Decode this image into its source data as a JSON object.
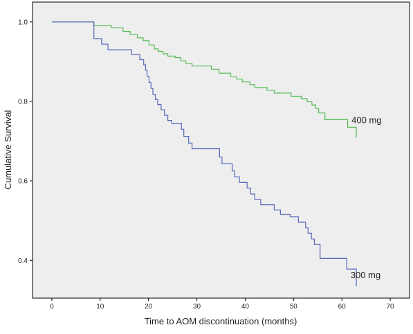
{
  "chart_data": {
    "type": "line",
    "title": "",
    "xlabel": "Time to AOM discontinuation (months)",
    "ylabel": "Cumulative Survival",
    "xlim": [
      -4,
      74
    ],
    "ylim": [
      0.305,
      1.05
    ],
    "xticks": [
      0,
      10,
      20,
      30,
      40,
      50,
      60,
      70
    ],
    "yticks": [
      0.4,
      0.6,
      0.8,
      1.0
    ],
    "ytick_labels": [
      "0.4",
      "0.6",
      "0.8",
      "1.0"
    ],
    "plot_background": "#eeeeee",
    "grid": false,
    "series": [
      {
        "name": "400 mg",
        "color": "#55bb55",
        "label_at": [
          62,
          0.745
        ],
        "points": [
          [
            0,
            1.0
          ],
          [
            8.7,
            1.0
          ],
          [
            8.7,
            0.991
          ],
          [
            12.3,
            0.991
          ],
          [
            12.3,
            0.985
          ],
          [
            14.7,
            0.985
          ],
          [
            14.7,
            0.976
          ],
          [
            16.2,
            0.976
          ],
          [
            16.2,
            0.968
          ],
          [
            17.7,
            0.968
          ],
          [
            17.7,
            0.96
          ],
          [
            18.9,
            0.96
          ],
          [
            18.9,
            0.953
          ],
          [
            20.1,
            0.953
          ],
          [
            20.1,
            0.942
          ],
          [
            21.2,
            0.942
          ],
          [
            21.2,
            0.932
          ],
          [
            22.0,
            0.932
          ],
          [
            22.0,
            0.926
          ],
          [
            23.0,
            0.926
          ],
          [
            23.0,
            0.92
          ],
          [
            24.0,
            0.92
          ],
          [
            24.0,
            0.914
          ],
          [
            25.5,
            0.914
          ],
          [
            25.5,
            0.91
          ],
          [
            26.7,
            0.91
          ],
          [
            26.7,
            0.902
          ],
          [
            27.7,
            0.902
          ],
          [
            27.7,
            0.896
          ],
          [
            29.0,
            0.896
          ],
          [
            29.0,
            0.889
          ],
          [
            33.0,
            0.889
          ],
          [
            33.0,
            0.881
          ],
          [
            34.6,
            0.881
          ],
          [
            34.6,
            0.871
          ],
          [
            37.0,
            0.871
          ],
          [
            37.0,
            0.862
          ],
          [
            38.2,
            0.862
          ],
          [
            38.2,
            0.856
          ],
          [
            39.4,
            0.856
          ],
          [
            39.4,
            0.849
          ],
          [
            41.0,
            0.849
          ],
          [
            41.0,
            0.842
          ],
          [
            42.0,
            0.842
          ],
          [
            42.0,
            0.835
          ],
          [
            44.5,
            0.835
          ],
          [
            44.5,
            0.828
          ],
          [
            46.0,
            0.828
          ],
          [
            46.0,
            0.821
          ],
          [
            49.5,
            0.821
          ],
          [
            49.5,
            0.813
          ],
          [
            51.6,
            0.813
          ],
          [
            51.6,
            0.807
          ],
          [
            52.8,
            0.807
          ],
          [
            52.8,
            0.799
          ],
          [
            53.8,
            0.799
          ],
          [
            53.8,
            0.791
          ],
          [
            54.6,
            0.791
          ],
          [
            54.6,
            0.782
          ],
          [
            55.2,
            0.782
          ],
          [
            55.2,
            0.771
          ],
          [
            56.5,
            0.771
          ],
          [
            56.5,
            0.754
          ],
          [
            61.2,
            0.754
          ],
          [
            61.2,
            0.735
          ],
          [
            63.0,
            0.735
          ],
          [
            63.0,
            0.708
          ]
        ]
      },
      {
        "name": "300 mg",
        "color": "#5566bb",
        "label_at": [
          61.8,
          0.355
        ],
        "points": [
          [
            0,
            1.0
          ],
          [
            8.7,
            1.0
          ],
          [
            8.7,
            0.958
          ],
          [
            10.3,
            0.958
          ],
          [
            10.3,
            0.944
          ],
          [
            11.6,
            0.944
          ],
          [
            11.6,
            0.93
          ],
          [
            16.5,
            0.93
          ],
          [
            16.5,
            0.918
          ],
          [
            18.2,
            0.918
          ],
          [
            18.2,
            0.905
          ],
          [
            19.0,
            0.905
          ],
          [
            19.0,
            0.892
          ],
          [
            19.4,
            0.892
          ],
          [
            19.4,
            0.878
          ],
          [
            19.7,
            0.878
          ],
          [
            19.7,
            0.863
          ],
          [
            20.1,
            0.863
          ],
          [
            20.1,
            0.848
          ],
          [
            20.5,
            0.848
          ],
          [
            20.5,
            0.833
          ],
          [
            20.9,
            0.833
          ],
          [
            20.9,
            0.818
          ],
          [
            21.4,
            0.818
          ],
          [
            21.4,
            0.805
          ],
          [
            21.9,
            0.805
          ],
          [
            21.9,
            0.792
          ],
          [
            22.6,
            0.792
          ],
          [
            22.6,
            0.779
          ],
          [
            23.3,
            0.779
          ],
          [
            23.3,
            0.765
          ],
          [
            24.0,
            0.765
          ],
          [
            24.0,
            0.752
          ],
          [
            24.8,
            0.752
          ],
          [
            24.8,
            0.745
          ],
          [
            26.8,
            0.745
          ],
          [
            26.8,
            0.73
          ],
          [
            27.3,
            0.73
          ],
          [
            27.3,
            0.712
          ],
          [
            28.3,
            0.712
          ],
          [
            28.3,
            0.695
          ],
          [
            29.0,
            0.695
          ],
          [
            29.0,
            0.681
          ],
          [
            34.7,
            0.681
          ],
          [
            34.7,
            0.66
          ],
          [
            35.2,
            0.66
          ],
          [
            35.2,
            0.643
          ],
          [
            37.3,
            0.643
          ],
          [
            37.3,
            0.625
          ],
          [
            37.8,
            0.625
          ],
          [
            37.8,
            0.61
          ],
          [
            38.8,
            0.61
          ],
          [
            38.8,
            0.596
          ],
          [
            40.4,
            0.596
          ],
          [
            40.4,
            0.582
          ],
          [
            41.1,
            0.582
          ],
          [
            41.1,
            0.567
          ],
          [
            42.0,
            0.567
          ],
          [
            42.0,
            0.553
          ],
          [
            43.2,
            0.553
          ],
          [
            43.2,
            0.54
          ],
          [
            46.0,
            0.54
          ],
          [
            46.0,
            0.527
          ],
          [
            47.3,
            0.527
          ],
          [
            47.3,
            0.516
          ],
          [
            49.3,
            0.516
          ],
          [
            49.3,
            0.51
          ],
          [
            51.0,
            0.51
          ],
          [
            51.0,
            0.496
          ],
          [
            52.5,
            0.496
          ],
          [
            52.5,
            0.482
          ],
          [
            53.0,
            0.482
          ],
          [
            53.0,
            0.468
          ],
          [
            53.7,
            0.468
          ],
          [
            53.7,
            0.454
          ],
          [
            54.3,
            0.454
          ],
          [
            54.3,
            0.44
          ],
          [
            55.5,
            0.44
          ],
          [
            55.5,
            0.405
          ],
          [
            61.0,
            0.405
          ],
          [
            61.0,
            0.378
          ],
          [
            63.0,
            0.378
          ],
          [
            63.0,
            0.335
          ]
        ]
      }
    ]
  }
}
